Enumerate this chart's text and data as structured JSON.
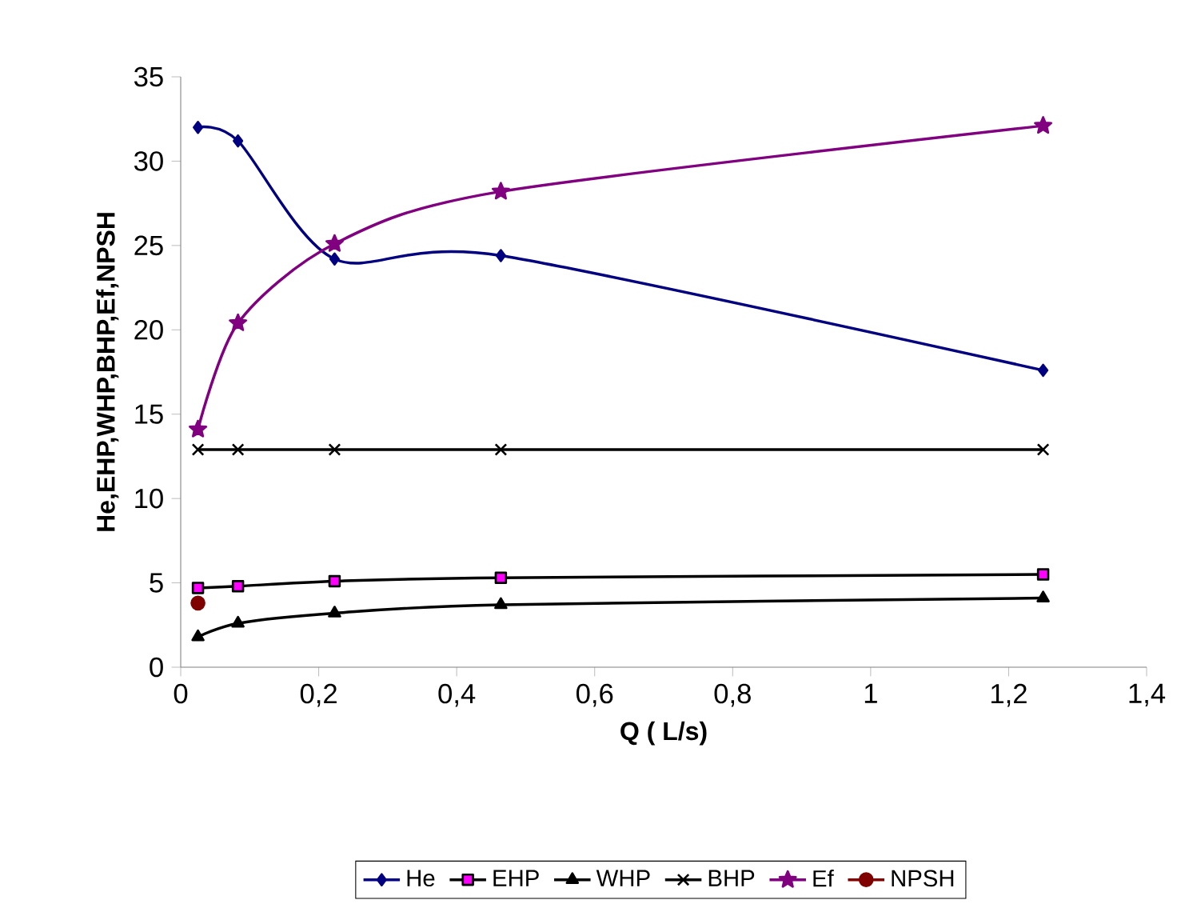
{
  "chart_data": {
    "type": "line",
    "xlabel": "Q ( L/s)",
    "ylabel": "He,EHP,WHP,BHP,Ef,NPSH",
    "x": [
      0.025,
      0.083,
      0.223,
      0.464,
      1.25
    ],
    "series": [
      {
        "name": "He",
        "color": "#000080",
        "marker": "diamond",
        "values": [
          32,
          31.2,
          24.2,
          24.4,
          17.6
        ]
      },
      {
        "name": "EHP",
        "color": "#ff00ff",
        "marker": "square",
        "values": [
          4.7,
          4.8,
          5.1,
          5.3,
          5.5
        ]
      },
      {
        "name": "WHP",
        "color": "#000000",
        "marker": "triangle",
        "values": [
          1.8,
          2.6,
          3.2,
          3.7,
          4.1
        ]
      },
      {
        "name": "BHP",
        "color": "#000000",
        "marker": "cross",
        "values": [
          12.9,
          12.9,
          12.9,
          12.9,
          12.9
        ]
      },
      {
        "name": "Ef",
        "color": "#800080",
        "marker": "star",
        "values": [
          14.1,
          20.4,
          25.1,
          28.2,
          32.1
        ]
      },
      {
        "name": "NPSH",
        "color": "#800000",
        "marker": "circle",
        "values": [
          3.8,
          null,
          null,
          null,
          null
        ]
      }
    ],
    "xlim": [
      0,
      1.4
    ],
    "xticks": [
      0,
      {
        "value": 0.2,
        "label": "0,2"
      },
      {
        "value": 0.4,
        "label": "0,4"
      },
      {
        "value": 0.6,
        "label": "0,6"
      },
      {
        "value": 0.8,
        "label": "0,8"
      },
      1,
      {
        "value": 1.2,
        "label": "1,2"
      },
      {
        "value": 1.4,
        "label": "1,4"
      }
    ],
    "ylim": [
      0,
      35
    ],
    "yticks": [
      0,
      5,
      10,
      15,
      20,
      25,
      30,
      35
    ],
    "legend": "bottom",
    "grid": false
  }
}
